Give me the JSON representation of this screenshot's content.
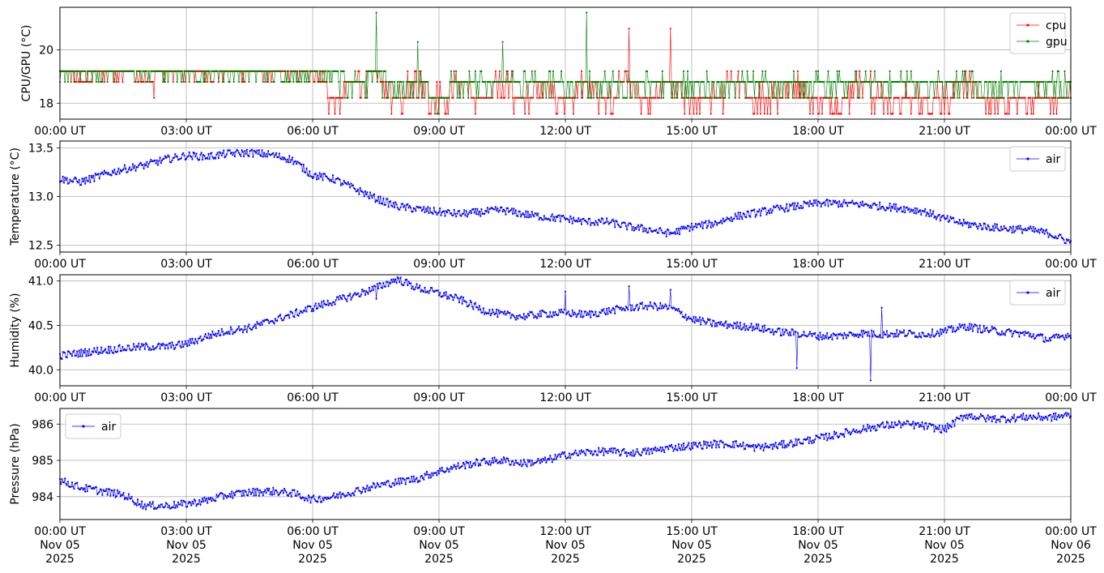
{
  "chart_data": [
    {
      "type": "line",
      "ylabel": "CPU/GPU (°C)",
      "ylim": [
        17.4,
        21.6
      ],
      "yticks": [
        18,
        20
      ],
      "xlim": [
        "2025-11-05 00:00",
        "2025-11-06 00:00"
      ],
      "xticks": [
        "00:00 UT",
        "03:00 UT",
        "06:00 UT",
        "09:00 UT",
        "12:00 UT",
        "15:00 UT",
        "18:00 UT",
        "21:00 UT",
        "00:00 UT"
      ],
      "grid": true,
      "legend_position": "upper right",
      "series": [
        {
          "name": "cpu",
          "color": "#ff0000",
          "x_hours": [
            0,
            0.5,
            1.0,
            1.5,
            2.0,
            2.5,
            3.0,
            3.5,
            4.0,
            4.5,
            5.0,
            5.5,
            6.0,
            6.5,
            7.0,
            7.5,
            8.0,
            8.5,
            9.0,
            9.5,
            10.0,
            10.5,
            11.0,
            11.5,
            12.0,
            12.5,
            13.0,
            13.5,
            14.0,
            14.5,
            15.0,
            15.5,
            16.0,
            16.5,
            17.0,
            17.5,
            18.0,
            18.5,
            19.0,
            19.5,
            20.0,
            20.5,
            21.0,
            21.5,
            22.0,
            22.5,
            23.0,
            23.5,
            24.0
          ],
          "values": [
            19.2,
            18.8,
            19.2,
            19.2,
            18.8,
            19.2,
            19.2,
            19.2,
            19.2,
            19.2,
            19.2,
            19.2,
            19.2,
            18.2,
            18.8,
            19.2,
            18.2,
            18.8,
            18.2,
            18.8,
            18.2,
            18.8,
            18.2,
            18.8,
            18.2,
            18.8,
            18.2,
            18.8,
            18.2,
            18.8,
            18.2,
            18.2,
            18.8,
            18.2,
            18.2,
            18.8,
            18.2,
            18.2,
            18.8,
            18.2,
            18.2,
            18.2,
            18.2,
            18.8,
            18.2,
            18.2,
            18.2,
            18.2,
            18.2
          ]
        },
        {
          "name": "gpu",
          "color": "#008000",
          "x_hours": [
            0,
            0.5,
            1.0,
            1.5,
            2.0,
            2.5,
            3.0,
            3.5,
            4.0,
            4.5,
            5.0,
            5.5,
            6.0,
            6.5,
            7.0,
            7.5,
            8.0,
            8.5,
            9.0,
            9.5,
            10.0,
            10.5,
            11.0,
            11.5,
            12.0,
            12.5,
            13.0,
            13.5,
            14.0,
            14.5,
            15.0,
            15.5,
            16.0,
            16.5,
            17.0,
            17.5,
            18.0,
            18.5,
            19.0,
            19.5,
            20.0,
            20.5,
            21.0,
            21.5,
            22.0,
            22.5,
            23.0,
            23.5,
            24.0
          ],
          "values": [
            19.2,
            19.2,
            19.2,
            19.2,
            19.2,
            19.2,
            19.2,
            19.2,
            19.2,
            19.2,
            19.2,
            19.2,
            19.2,
            19.2,
            18.8,
            19.2,
            18.8,
            18.8,
            18.2,
            18.8,
            18.8,
            18.8,
            18.8,
            18.8,
            18.8,
            18.8,
            18.8,
            18.8,
            18.8,
            18.8,
            18.8,
            18.8,
            18.8,
            18.8,
            18.8,
            18.8,
            18.8,
            18.8,
            18.8,
            18.8,
            18.8,
            18.8,
            18.8,
            18.8,
            18.8,
            18.8,
            18.8,
            18.8,
            18.8
          ]
        }
      ],
      "spikes": [
        {
          "x_hour": 7.5,
          "value": 21.4,
          "series": "gpu"
        },
        {
          "x_hour": 8.5,
          "value": 20.3,
          "series": "gpu"
        },
        {
          "x_hour": 10.5,
          "value": 20.3,
          "series": "gpu"
        },
        {
          "x_hour": 12.5,
          "value": 21.4,
          "series": "gpu"
        },
        {
          "x_hour": 13.5,
          "value": 20.8,
          "series": "cpu"
        },
        {
          "x_hour": 14.5,
          "value": 20.8,
          "series": "cpu"
        }
      ]
    },
    {
      "type": "line",
      "ylabel": "Temperature (°C)",
      "ylim": [
        12.43,
        13.57
      ],
      "yticks": [
        12.5,
        13.0,
        13.5
      ],
      "xlim": [
        "2025-11-05 00:00",
        "2025-11-06 00:00"
      ],
      "xticks": [
        "00:00 UT",
        "03:00 UT",
        "06:00 UT",
        "09:00 UT",
        "12:00 UT",
        "15:00 UT",
        "18:00 UT",
        "21:00 UT",
        "00:00 UT"
      ],
      "grid": true,
      "legend_position": "upper right",
      "series": [
        {
          "name": "air",
          "color": "#0000ff",
          "x_hours": [
            0,
            0.5,
            1.0,
            1.5,
            2.0,
            2.5,
            3.0,
            3.5,
            4.0,
            4.5,
            5.0,
            5.5,
            6.0,
            6.5,
            7.0,
            7.5,
            8.0,
            8.5,
            9.0,
            9.5,
            10.0,
            10.5,
            11.0,
            11.5,
            12.0,
            12.5,
            13.0,
            13.5,
            14.0,
            14.5,
            15.0,
            15.5,
            16.0,
            16.5,
            17.0,
            17.5,
            18.0,
            18.5,
            19.0,
            19.5,
            20.0,
            20.5,
            21.0,
            21.5,
            22.0,
            22.5,
            23.0,
            23.5,
            24.0
          ],
          "values": [
            13.18,
            13.15,
            13.22,
            13.28,
            13.32,
            13.38,
            13.42,
            13.41,
            13.44,
            13.45,
            13.43,
            13.38,
            13.22,
            13.18,
            13.08,
            12.98,
            12.9,
            12.87,
            12.84,
            12.82,
            12.84,
            12.86,
            12.82,
            12.79,
            12.77,
            12.74,
            12.74,
            12.69,
            12.66,
            12.62,
            12.69,
            12.72,
            12.79,
            12.83,
            12.87,
            12.9,
            12.93,
            12.93,
            12.92,
            12.9,
            12.88,
            12.85,
            12.77,
            12.72,
            12.69,
            12.67,
            12.66,
            12.62,
            12.53
          ]
        }
      ]
    },
    {
      "type": "line",
      "ylabel": "Humidity (%)",
      "ylim": [
        39.82,
        41.07
      ],
      "yticks": [
        40.0,
        40.5,
        41.0
      ],
      "xlim": [
        "2025-11-05 00:00",
        "2025-11-06 00:00"
      ],
      "xticks": [
        "00:00 UT",
        "03:00 UT",
        "06:00 UT",
        "09:00 UT",
        "12:00 UT",
        "15:00 UT",
        "18:00 UT",
        "21:00 UT",
        "00:00 UT"
      ],
      "grid": true,
      "legend_position": "upper right",
      "series": [
        {
          "name": "air",
          "color": "#0000ff",
          "x_hours": [
            0,
            0.5,
            1.0,
            1.5,
            2.0,
            2.5,
            3.0,
            3.5,
            4.0,
            4.5,
            5.0,
            5.5,
            6.0,
            6.5,
            7.0,
            7.5,
            8.0,
            8.5,
            9.0,
            9.5,
            10.0,
            10.5,
            11.0,
            11.5,
            12.0,
            12.5,
            13.0,
            13.5,
            14.0,
            14.5,
            15.0,
            15.5,
            16.0,
            16.5,
            17.0,
            17.5,
            18.0,
            18.5,
            19.0,
            19.5,
            20.0,
            20.5,
            21.0,
            21.5,
            22.0,
            22.5,
            23.0,
            23.5,
            24.0
          ],
          "values": [
            40.16,
            40.19,
            40.22,
            40.24,
            40.26,
            40.26,
            40.29,
            40.38,
            40.44,
            40.47,
            40.55,
            40.62,
            40.7,
            40.77,
            40.84,
            40.92,
            41.02,
            40.92,
            40.86,
            40.79,
            40.68,
            40.62,
            40.6,
            40.63,
            40.64,
            40.62,
            40.66,
            40.7,
            40.72,
            40.7,
            40.57,
            40.52,
            40.5,
            40.48,
            40.43,
            40.41,
            40.38,
            40.38,
            40.41,
            40.4,
            40.41,
            40.4,
            40.43,
            40.49,
            40.45,
            40.42,
            40.4,
            40.34,
            40.4
          ]
        }
      ],
      "spikes": [
        {
          "x_hour": 7.5,
          "value": 40.8
        },
        {
          "x_hour": 12.0,
          "value": 40.88
        },
        {
          "x_hour": 13.5,
          "value": 40.94
        },
        {
          "x_hour": 14.5,
          "value": 40.9
        },
        {
          "x_hour": 17.5,
          "value": 40.02
        },
        {
          "x_hour": 19.25,
          "value": 39.88
        },
        {
          "x_hour": 19.5,
          "value": 40.7
        }
      ]
    },
    {
      "type": "line",
      "ylabel": "Pressure (hPa)",
      "ylim": [
        983.37,
        986.43
      ],
      "yticks": [
        984,
        985,
        986
      ],
      "xlim": [
        "2025-11-05 00:00",
        "2025-11-06 00:00"
      ],
      "xticks": [
        "00:00 UT\nNov 05\n2025",
        "03:00 UT\nNov 05\n2025",
        "06:00 UT\nNov 05\n2025",
        "09:00 UT\nNov 05\n2025",
        "12:00 UT\nNov 05\n2025",
        "15:00 UT\nNov 05\n2025",
        "18:00 UT\nNov 05\n2025",
        "21:00 UT\nNov 05\n2025",
        "00:00 UT\nNov 06\n2025"
      ],
      "grid": true,
      "legend_position": "upper left",
      "series": [
        {
          "name": "air",
          "color": "#0000ff",
          "x_hours": [
            0,
            0.5,
            1.0,
            1.5,
            2.0,
            2.5,
            3.0,
            3.5,
            4.0,
            4.5,
            5.0,
            5.5,
            6.0,
            6.5,
            7.0,
            7.5,
            8.0,
            8.5,
            9.0,
            9.5,
            10.0,
            10.5,
            11.0,
            11.5,
            12.0,
            12.5,
            13.0,
            13.5,
            14.0,
            14.5,
            15.0,
            15.5,
            16.0,
            16.5,
            17.0,
            17.5,
            18.0,
            18.5,
            19.0,
            19.5,
            20.0,
            20.5,
            21.0,
            21.5,
            22.0,
            22.5,
            23.0,
            23.5,
            24.0
          ],
          "values": [
            984.45,
            984.25,
            984.15,
            984.05,
            983.75,
            983.75,
            983.8,
            983.9,
            984.05,
            984.12,
            984.15,
            984.1,
            983.92,
            984.0,
            984.15,
            984.3,
            984.4,
            984.5,
            984.7,
            984.85,
            984.95,
            985.0,
            984.92,
            984.98,
            985.15,
            985.22,
            985.25,
            985.2,
            985.25,
            985.35,
            985.4,
            985.45,
            985.45,
            985.35,
            985.4,
            985.5,
            985.6,
            985.72,
            985.85,
            985.95,
            986.0,
            985.95,
            985.85,
            986.25,
            986.15,
            986.15,
            986.2,
            986.18,
            986.25
          ]
        }
      ]
    }
  ]
}
